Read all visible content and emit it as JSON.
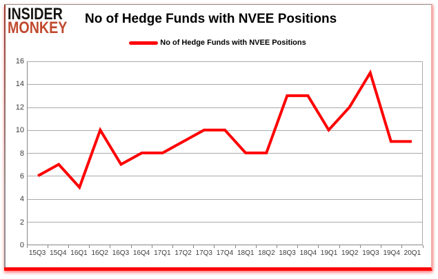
{
  "logo": {
    "line1": "INSIDER",
    "line2": "MONKEY",
    "accent_color": "#c0492e"
  },
  "title": "No of Hedge Funds with NVEE Positions",
  "legend": {
    "label": "No of Hedge Funds with NVEE Positions",
    "line_color": "#ff0000"
  },
  "chart_data": {
    "type": "line",
    "title": "No of Hedge Funds with NVEE Positions",
    "categories": [
      "15Q3",
      "15Q4",
      "16Q1",
      "16Q2",
      "16Q3",
      "16Q4",
      "17Q1",
      "17Q2",
      "17Q3",
      "17Q4",
      "18Q1",
      "18Q2",
      "18Q3",
      "18Q4",
      "19Q1",
      "19Q2",
      "19Q3",
      "19Q4",
      "20Q1"
    ],
    "series": [
      {
        "name": "No of Hedge Funds with NVEE Positions",
        "color": "#ff0000",
        "values": [
          6,
          7,
          5,
          10,
          7,
          8,
          8,
          9,
          10,
          10,
          8,
          8,
          13,
          13,
          10,
          12,
          15,
          9,
          9
        ]
      }
    ],
    "xlabel": "",
    "ylabel": "",
    "ylim": [
      0,
      16
    ],
    "ytick_step": 2,
    "grid": true,
    "gridline_color": "#a9a9a9",
    "legend_position": "top-center"
  }
}
